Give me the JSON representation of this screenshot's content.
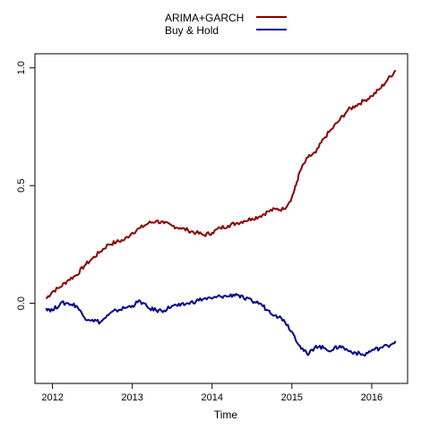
{
  "chart_data": {
    "type": "line",
    "title": "",
    "xlabel": "Time",
    "ylabel": "",
    "xlim": [
      2011.78,
      2016.45
    ],
    "ylim": [
      -0.34,
      1.06
    ],
    "xticks": [
      2012,
      2013,
      2014,
      2015,
      2016
    ],
    "xtick_labels": [
      "2012",
      "2013",
      "2014",
      "2015",
      "2016"
    ],
    "yticks": [
      0.0,
      0.5,
      1.0
    ],
    "ytick_labels": [
      "0.0",
      "0.5",
      "1.0"
    ],
    "grid": false,
    "legend": {
      "position": "top-center"
    },
    "series": [
      {
        "name": "ARIMA+GARCH",
        "color": "#8b0000",
        "points": [
          [
            2011.92,
            0.02
          ],
          [
            2012.0,
            0.05
          ],
          [
            2012.1,
            0.07
          ],
          [
            2012.2,
            0.1
          ],
          [
            2012.3,
            0.12
          ],
          [
            2012.4,
            0.16
          ],
          [
            2012.5,
            0.19
          ],
          [
            2012.6,
            0.22
          ],
          [
            2012.7,
            0.25
          ],
          [
            2012.8,
            0.26
          ],
          [
            2012.9,
            0.27
          ],
          [
            2013.0,
            0.3
          ],
          [
            2013.1,
            0.32
          ],
          [
            2013.2,
            0.34
          ],
          [
            2013.3,
            0.35
          ],
          [
            2013.4,
            0.34
          ],
          [
            2013.5,
            0.33
          ],
          [
            2013.6,
            0.32
          ],
          [
            2013.7,
            0.31
          ],
          [
            2013.8,
            0.3
          ],
          [
            2013.9,
            0.29
          ],
          [
            2014.0,
            0.3
          ],
          [
            2014.1,
            0.32
          ],
          [
            2014.2,
            0.33
          ],
          [
            2014.3,
            0.34
          ],
          [
            2014.4,
            0.35
          ],
          [
            2014.5,
            0.36
          ],
          [
            2014.6,
            0.37
          ],
          [
            2014.7,
            0.39
          ],
          [
            2014.8,
            0.4
          ],
          [
            2014.9,
            0.4
          ],
          [
            2015.0,
            0.45
          ],
          [
            2015.05,
            0.5
          ],
          [
            2015.1,
            0.56
          ],
          [
            2015.2,
            0.62
          ],
          [
            2015.3,
            0.64
          ],
          [
            2015.4,
            0.7
          ],
          [
            2015.5,
            0.74
          ],
          [
            2015.6,
            0.78
          ],
          [
            2015.7,
            0.82
          ],
          [
            2015.8,
            0.84
          ],
          [
            2015.9,
            0.86
          ],
          [
            2016.0,
            0.88
          ],
          [
            2016.1,
            0.91
          ],
          [
            2016.2,
            0.95
          ],
          [
            2016.3,
            0.99
          ]
        ]
      },
      {
        "name": "Buy & Hold",
        "color": "#00008b",
        "points": [
          [
            2011.92,
            -0.02
          ],
          [
            2012.0,
            -0.03
          ],
          [
            2012.1,
            0.0
          ],
          [
            2012.2,
            0.0
          ],
          [
            2012.3,
            -0.01
          ],
          [
            2012.4,
            -0.06
          ],
          [
            2012.5,
            -0.07
          ],
          [
            2012.6,
            -0.08
          ],
          [
            2012.7,
            -0.05
          ],
          [
            2012.8,
            -0.03
          ],
          [
            2012.9,
            -0.02
          ],
          [
            2013.0,
            -0.01
          ],
          [
            2013.1,
            0.01
          ],
          [
            2013.2,
            -0.02
          ],
          [
            2013.3,
            -0.03
          ],
          [
            2013.4,
            -0.03
          ],
          [
            2013.5,
            -0.01
          ],
          [
            2013.6,
            -0.01
          ],
          [
            2013.7,
            0.0
          ],
          [
            2013.8,
            0.01
          ],
          [
            2013.9,
            0.02
          ],
          [
            2014.0,
            0.02
          ],
          [
            2014.1,
            0.03
          ],
          [
            2014.2,
            0.03
          ],
          [
            2014.3,
            0.04
          ],
          [
            2014.4,
            0.02
          ],
          [
            2014.5,
            0.01
          ],
          [
            2014.6,
            0.0
          ],
          [
            2014.7,
            -0.03
          ],
          [
            2014.8,
            -0.05
          ],
          [
            2014.9,
            -0.07
          ],
          [
            2015.0,
            -0.12
          ],
          [
            2015.1,
            -0.18
          ],
          [
            2015.2,
            -0.22
          ],
          [
            2015.3,
            -0.18
          ],
          [
            2015.4,
            -0.19
          ],
          [
            2015.5,
            -0.2
          ],
          [
            2015.6,
            -0.18
          ],
          [
            2015.7,
            -0.2
          ],
          [
            2015.8,
            -0.21
          ],
          [
            2015.9,
            -0.22
          ],
          [
            2016.0,
            -0.2
          ],
          [
            2016.1,
            -0.19
          ],
          [
            2016.2,
            -0.18
          ],
          [
            2016.3,
            -0.16
          ]
        ]
      }
    ]
  }
}
